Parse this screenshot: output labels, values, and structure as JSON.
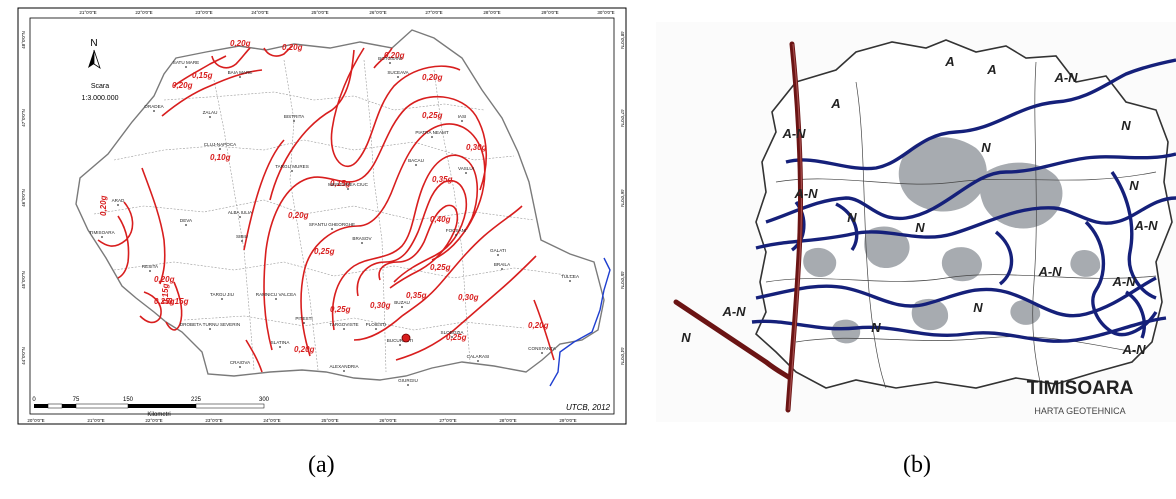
{
  "panel_a": {
    "caption": "(a)",
    "scale_title": "Scara",
    "scale_ratio": "1:3.000.000",
    "north": "N",
    "credit": "UTCB, 2012",
    "scalebar": {
      "ticks": [
        "0",
        "75",
        "150",
        "225",
        "300"
      ],
      "unit": "Kilometri"
    },
    "top_ticks": [
      "21°0'0\"E",
      "22°0'0\"E",
      "23°0'0\"E",
      "24°0'0\"E",
      "25°0'0\"E",
      "26°0'0\"E",
      "27°0'0\"E",
      "28°0'0\"E",
      "29°0'0\"E",
      "30°0'0\"E"
    ],
    "bottom_ticks": [
      "20°0'0\"E",
      "21°0'0\"E",
      "22°0'0\"E",
      "23°0'0\"E",
      "24°0'0\"E",
      "25°0'0\"E",
      "26°0'0\"E",
      "27°0'0\"E",
      "28°0'0\"E",
      "29°0'0\"E"
    ],
    "left_ticks": [
      "48°0'0\"N",
      "47°0'0\"N",
      "46°0'0\"N",
      "45°0'0\"N",
      "44°0'0\"N"
    ],
    "right_ticks": [
      "48°0'0\"N",
      "47°0'0\"N",
      "46°0'0\"N",
      "45°0'0\"N",
      "44°0'0\"N"
    ],
    "contour_labels": [
      "0,20g",
      "0,20g",
      "0,20g",
      "0,15g",
      "0,20g",
      "0,20g",
      "0,25g",
      "0,10g",
      "0,30g",
      "0,15g",
      "0,35g",
      "0,20g",
      "0,40g",
      "0,20g",
      "0,25g",
      "0,25g",
      "0,15g",
      "0,25g",
      "0,20g",
      "0,25g",
      "0,15g",
      "0,30g",
      "0,35g",
      "0,30g",
      "0,25g",
      "0,20g",
      "0,20g"
    ],
    "cities": [
      "SATU MARE",
      "BAIA MARE",
      "BOTOSANI",
      "SUCEAVA",
      "ORADEA",
      "ZALAU",
      "BISTRITA",
      "IASI",
      "PIATRA NEAMT",
      "CLUJ-NAPOCA",
      "TARGU MURES",
      "VASLUI",
      "BACAU",
      "MIERCUREA CIUC",
      "ARAD",
      "ALBA IULIA",
      "DEVA",
      "TIMISOARA",
      "SIBIU",
      "SFANTU GHEORGHE",
      "BRASOV",
      "FOCSANI",
      "GALATI",
      "BRAILA",
      "TULCEA",
      "RESITA",
      "TARGU JIU",
      "RAMNICU VALCEA",
      "PITESTI",
      "TARGOVISTE",
      "PLOIESTI",
      "BUZAU",
      "DROBETA TURNU SEVERIN",
      "SLATINA",
      "BUCURESTI",
      "SLOBOZIA",
      "CALARASI",
      "CONSTANTA",
      "CRAIOVA",
      "ALEXANDRIA",
      "GIURGIU"
    ]
  },
  "panel_b": {
    "caption": "(b)",
    "title": "TIMISOARA",
    "subtitle": "HARTA GEOTEHNICA",
    "zone_labels": [
      "A",
      "A",
      "A-N",
      "A",
      "A-N",
      "N",
      "N",
      "A-N",
      "N",
      "N",
      "N",
      "A-N",
      "A-N",
      "A-N",
      "N",
      "N",
      "A-N",
      "N",
      "A-N"
    ]
  },
  "colors": {
    "contour": "#d81e1e",
    "border": "#7a7a7a",
    "coast": "#1f3fd0",
    "blue_line": "#15207a",
    "brown_line": "#6b1414",
    "shade": "#8a8f96"
  }
}
